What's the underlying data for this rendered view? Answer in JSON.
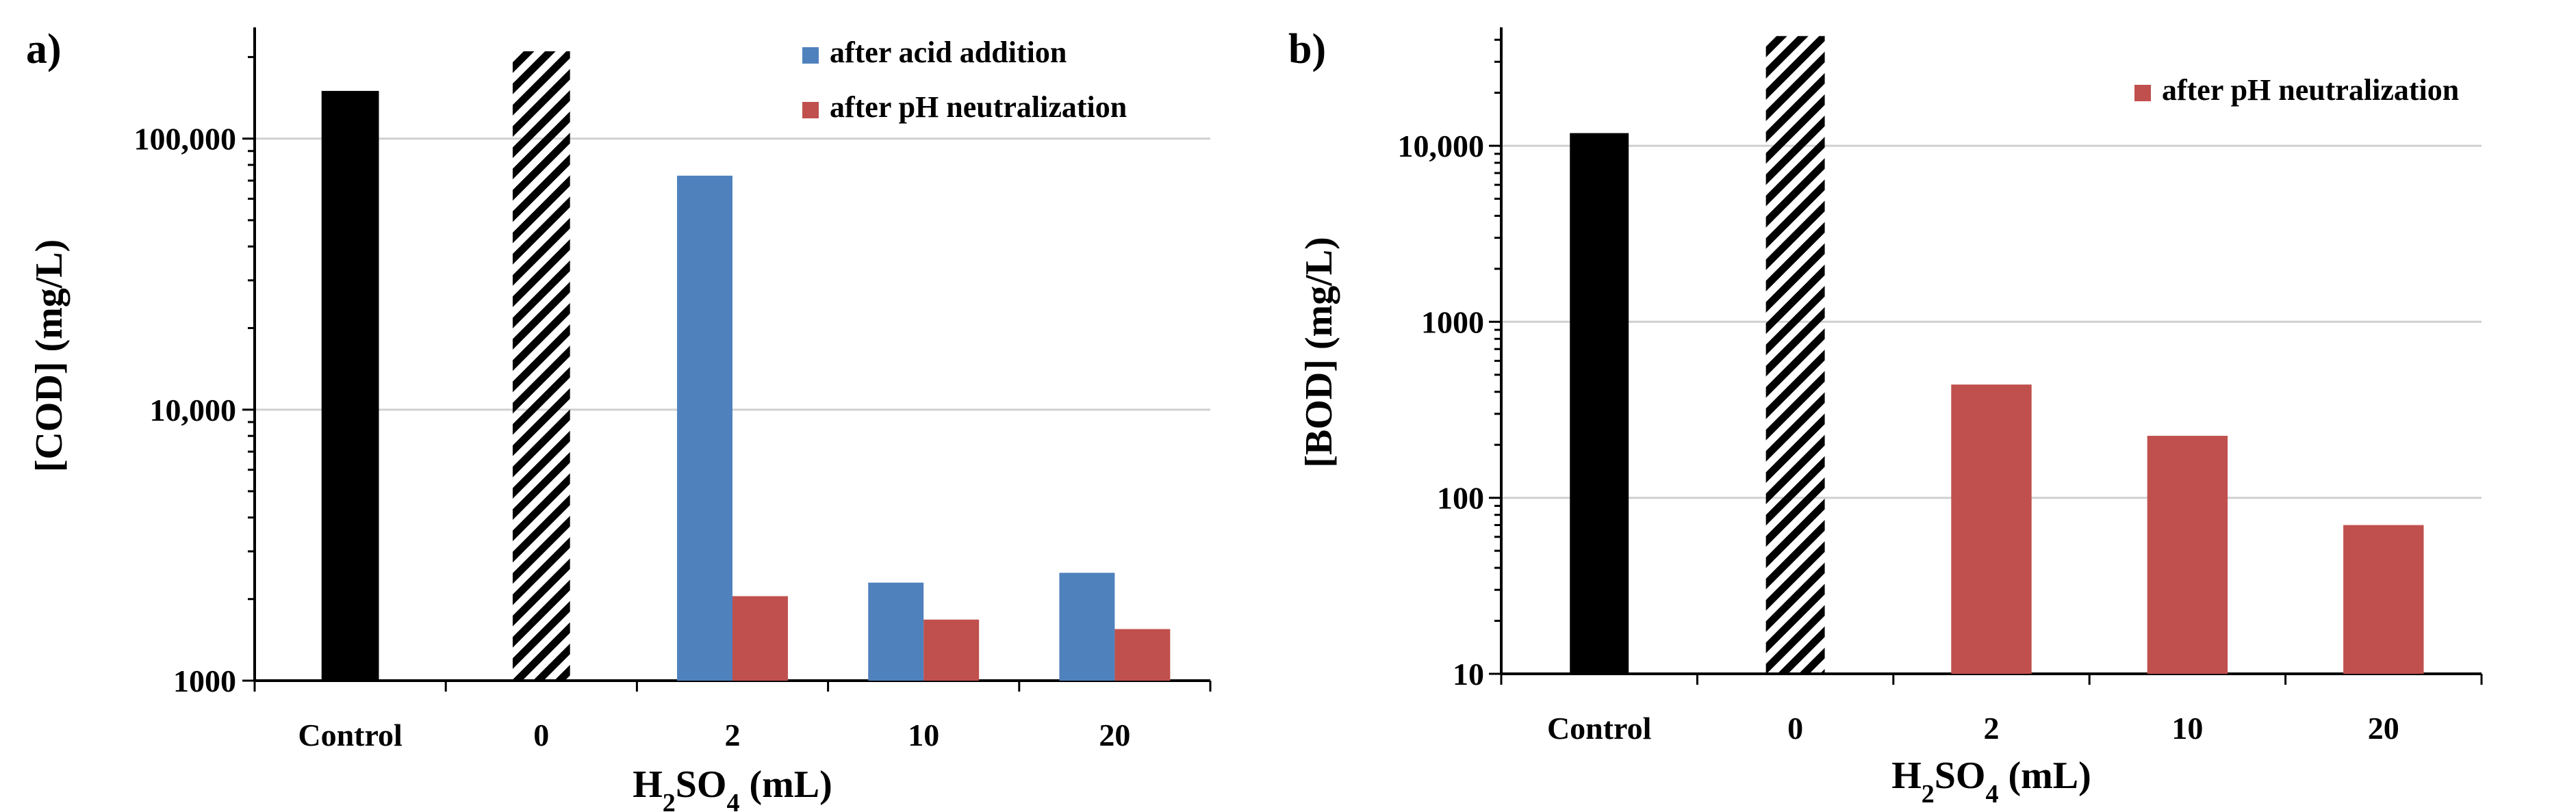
{
  "chart_data": [
    {
      "type": "bar",
      "panel_label": "a)",
      "y_scale": "log",
      "ylim": [
        1000,
        250000
      ],
      "ylabel": "[COD] (mg/L)",
      "xlabel_parts": [
        "H",
        "2",
        "SO",
        "4",
        " (mL)"
      ],
      "categories": [
        "Control",
        "0",
        "2",
        "10",
        "20"
      ],
      "y_ticks": [
        1000,
        10000,
        100000
      ],
      "y_tick_labels": [
        "1000",
        "10,000",
        "100,000"
      ],
      "grid": true,
      "legend_position": "top-right",
      "reference_bars": [
        {
          "category": "Control",
          "value": 150000,
          "style": "solid",
          "color": "#000000"
        },
        {
          "category": "0",
          "value": 210000,
          "style": "hatched",
          "color": "#000000"
        }
      ],
      "series": [
        {
          "name": "after acid addition",
          "color": "#4F81BD",
          "values": [
            null,
            null,
            73000,
            2300,
            2500
          ]
        },
        {
          "name": "after pH neutralization",
          "color": "#C0504D",
          "values": [
            null,
            null,
            2050,
            1680,
            1550
          ]
        }
      ]
    },
    {
      "type": "bar",
      "panel_label": "b)",
      "y_scale": "log",
      "ylim": [
        10,
        45000
      ],
      "ylabel": "[BOD] (mg/L)",
      "xlabel_parts": [
        "H",
        "2",
        "SO",
        "4",
        " (mL)"
      ],
      "categories": [
        "Control",
        "0",
        "2",
        "10",
        "20"
      ],
      "y_ticks": [
        10,
        100,
        1000,
        10000
      ],
      "y_tick_labels": [
        "10",
        "100",
        "1000",
        "10,000"
      ],
      "grid": true,
      "legend_position": "top-right",
      "reference_bars": [
        {
          "category": "Control",
          "value": 11800,
          "style": "solid",
          "color": "#000000"
        },
        {
          "category": "0",
          "value": 42000,
          "style": "hatched",
          "color": "#000000"
        }
      ],
      "series": [
        {
          "name": "after pH neutralization",
          "color": "#C0504D",
          "values": [
            null,
            null,
            440,
            225,
            70
          ]
        }
      ]
    }
  ]
}
